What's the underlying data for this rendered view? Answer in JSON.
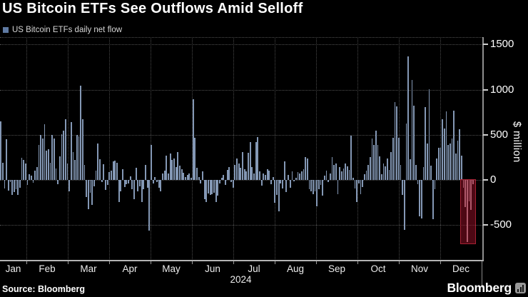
{
  "title": "US Bitcoin ETFs See Outflows Amid Selloff",
  "legend": {
    "label": "US Bitcoin ETFs daily net flow",
    "swatch_color": "#5f7aa3"
  },
  "source": "Source: Bloomberg",
  "brand": {
    "name": "Bloomberg"
  },
  "chart_data": {
    "type": "bar",
    "title": "US Bitcoin ETFs See Outflows Amid Selloff",
    "series_name": "US Bitcoin ETFs daily net flow",
    "unit": "$ million",
    "y_axis_label": "$ million",
    "y_ticks": [
      1500,
      1000,
      500,
      0,
      -500
    ],
    "ylim": [
      -900,
      1580
    ],
    "x_months": [
      "Jan",
      "Feb",
      "Mar",
      "Apr",
      "May",
      "Jun",
      "Jul",
      "Aug",
      "Sep",
      "Oct",
      "Nov",
      "Dec"
    ],
    "year_label": "2024",
    "grid": "dotted",
    "legend_position": "top-left",
    "colors": {
      "background": "#000000",
      "bar": "#8498b5",
      "highlighted_bar": "#b05a6c",
      "highlight_box_fill": "rgba(148,16,38,0.52)",
      "highlight_box_border": "#a62133"
    },
    "values": [
      646,
      193,
      -98,
      451,
      -116,
      -26,
      -169,
      -132,
      -105,
      -169,
      -84,
      243,
      219,
      179,
      -58,
      61,
      47,
      -32,
      100,
      140,
      390,
      496,
      456,
      614,
      324,
      338,
      193,
      496,
      456,
      127,
      -45,
      258,
      509,
      549,
      675,
      179,
      -124,
      641,
      311,
      219,
      496,
      483,
      1044,
      675,
      166,
      -190,
      -322,
      -142,
      -274,
      -71,
      100,
      403,
      232,
      -26,
      174,
      -111,
      -53,
      87,
      100,
      206,
      211,
      193,
      -243,
      -124,
      121,
      -79,
      -45,
      -37,
      42,
      -105,
      -216,
      132,
      -124,
      -71,
      -243,
      -105,
      166,
      -84,
      -565,
      385,
      -37,
      34,
      -26,
      -84,
      -124,
      69,
      100,
      272,
      69,
      290,
      219,
      237,
      140,
      306,
      158,
      121,
      79,
      34,
      53,
      74,
      26,
      891,
      469,
      132,
      34,
      -37,
      95,
      -216,
      -243,
      -150,
      -169,
      -158,
      -142,
      -243,
      -177,
      -37,
      26,
      53,
      -53,
      113,
      140,
      -26,
      -84,
      166,
      237,
      179,
      132,
      306,
      121,
      95,
      298,
      422,
      140,
      69,
      422,
      475,
      95,
      -63,
      69,
      53,
      121,
      106,
      -45,
      34,
      -256,
      -169,
      -348,
      -37,
      -98,
      206,
      -132,
      53,
      -84,
      95,
      -18,
      26,
      87,
      74,
      95,
      121,
      253,
      237,
      -105,
      -124,
      -158,
      -124,
      -295,
      -105,
      -53,
      -177,
      47,
      106,
      -26,
      69,
      253,
      166,
      179,
      -158,
      140,
      95,
      127,
      179,
      148,
      113,
      490,
      26,
      -98,
      -243,
      -37,
      -158,
      -79,
      61,
      100,
      166,
      253,
      456,
      385,
      549,
      390,
      258,
      61,
      179,
      148,
      237,
      113,
      311,
      464,
      865,
      817,
      464,
      166,
      -169,
      -554,
      628,
      1371,
      232,
      1107,
      825,
      166,
      -45,
      -406,
      -427,
      140,
      807,
      403,
      1002,
      158,
      -432,
      -105,
      237,
      358,
      358,
      675,
      570,
      760,
      385,
      403,
      456,
      765,
      290,
      438,
      562,
      272,
      -90,
      -300,
      -690,
      -235,
      -330,
      -45,
      null,
      null,
      null,
      null
    ],
    "highlight": {
      "start_index": 243,
      "end_index": 248,
      "box_bottom_value": -710,
      "meaning": "late-December outflows highlighted in red"
    }
  }
}
